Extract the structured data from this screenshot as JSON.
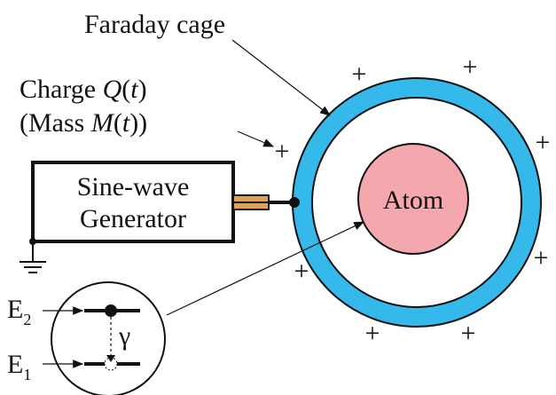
{
  "labels": {
    "faraday": "Faraday cage",
    "charge": [
      "Charge ",
      "Q",
      "(",
      "t",
      ")"
    ],
    "mass": [
      "(Mass ",
      "M",
      "(",
      "t",
      "))"
    ],
    "generator_line1": "Sine-wave",
    "generator_line2": "Generator",
    "atom": "Atom",
    "e2": [
      "E",
      "2"
    ],
    "e1": [
      "E",
      "1"
    ],
    "gamma": "γ"
  },
  "plus_signs": [
    "+",
    "+",
    "+",
    "+",
    "+",
    "+",
    "+",
    "+"
  ]
}
